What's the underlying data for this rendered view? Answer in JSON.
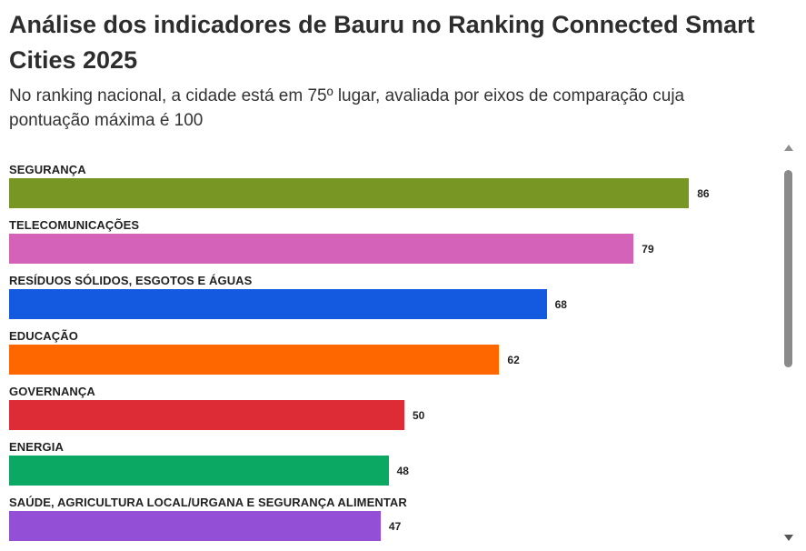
{
  "header": {
    "title": "Análise dos indicadores de Bauru no Ranking Connected Smart Cities 2025",
    "subtitle": "No ranking nacional, a cidade está em 75º lugar, avaliada por eixos de comparação cuja pontuação máxima é 100"
  },
  "chart_data": {
    "type": "bar",
    "orientation": "horizontal",
    "title": "Análise dos indicadores de Bauru no Ranking Connected Smart Cities 2025",
    "subtitle": "No ranking nacional, a cidade está em 75º lugar, avaliada por eixos de comparação cuja pontuação máxima é 100",
    "xlim": [
      0,
      100
    ],
    "grid": false,
    "categories": [
      "SEGURANÇA",
      "TELECOMUNICAÇÕES",
      "RESÍDUOS SÓLIDOS, ESGOTOS E ÁGUAS",
      "EDUCAÇÃO",
      "GOVERNANÇA",
      "ENERGIA",
      "SAÚDE, AGRICULTURA LOCAL/URGANA E SEGURANÇA ALIMENTAR"
    ],
    "values": [
      86,
      79,
      68,
      62,
      50,
      48,
      47
    ],
    "colors": [
      "#789623",
      "#d462b8",
      "#135ae0",
      "#fe6600",
      "#dd2c36",
      "#0aa863",
      "#934fd6"
    ]
  },
  "scrollbar": {
    "up_icon": "triangle-up-icon",
    "down_icon": "triangle-down-icon"
  }
}
